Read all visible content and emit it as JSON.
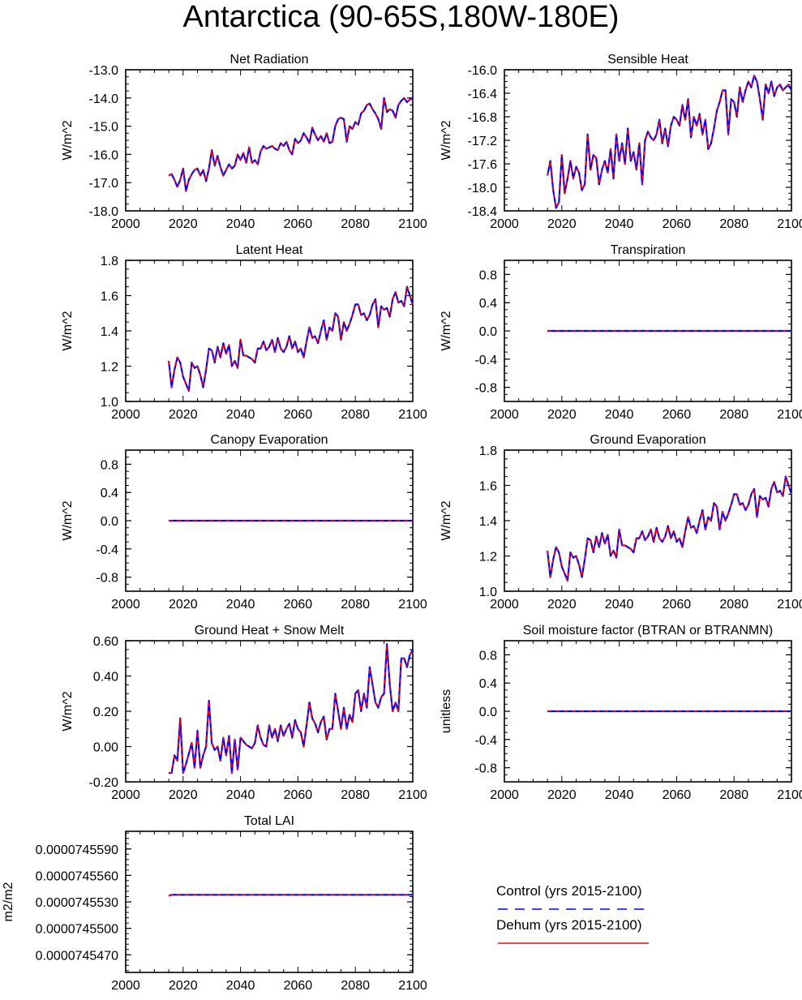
{
  "page": {
    "title": "Antarctica (90-65S,180W-180E)"
  },
  "legend": {
    "items": [
      {
        "label": "Control (yrs 2015-2100)",
        "color": "#0000ff",
        "style": "dashed"
      },
      {
        "label": "Dehum (yrs 2015-2100)",
        "color": "#ff0000",
        "style": "solid"
      }
    ]
  },
  "chart_data": [
    {
      "type": "line",
      "title": "Net Radiation",
      "ylabel": "W/m^2",
      "xlabel": "",
      "xlim": [
        2000,
        2100
      ],
      "ylim": [
        -18.0,
        -13.0
      ],
      "xticks": [
        2000,
        2020,
        2040,
        2060,
        2080,
        2100
      ],
      "yticks": [
        -18.0,
        -17.0,
        -16.0,
        -15.0,
        -14.0,
        -13.0
      ],
      "ytick_labels": [
        "-18.0",
        "-17.0",
        "-16.0",
        "-15.0",
        "-14.0",
        "-13.0"
      ],
      "yminor": 0.25,
      "x_start": 2015,
      "values": [
        -16.75,
        -16.7,
        -16.9,
        -17.15,
        -16.9,
        -16.5,
        -17.3,
        -16.9,
        -16.7,
        -16.55,
        -16.5,
        -16.75,
        -16.55,
        -16.95,
        -16.5,
        -15.85,
        -16.4,
        -16.05,
        -16.45,
        -16.75,
        -16.55,
        -16.35,
        -16.5,
        -16.4,
        -16.0,
        -16.2,
        -15.95,
        -16.3,
        -15.75,
        -16.3,
        -16.2,
        -16.35,
        -15.9,
        -15.7,
        -15.8,
        -15.75,
        -15.7,
        -15.8,
        -15.85,
        -15.6,
        -15.7,
        -15.55,
        -15.85,
        -16.0,
        -15.45,
        -15.6,
        -15.5,
        -15.25,
        -15.4,
        -15.6,
        -15.05,
        -15.3,
        -15.5,
        -15.35,
        -15.55,
        -15.25,
        -15.6,
        -15.55,
        -15.0,
        -14.75,
        -14.7,
        -14.75,
        -15.55,
        -15.0,
        -15.1,
        -14.85,
        -14.95,
        -14.55,
        -14.45,
        -14.25,
        -14.2,
        -14.4,
        -14.55,
        -14.75,
        -15.1,
        -14.0,
        -14.5,
        -14.4,
        -14.45,
        -14.7,
        -14.25,
        -14.1,
        -14.0,
        -14.15,
        -14.05,
        -14.0
      ]
    },
    {
      "type": "line",
      "title": "Sensible Heat",
      "ylabel": "W/m^2",
      "xlabel": "",
      "xlim": [
        2000,
        2100
      ],
      "ylim": [
        -18.4,
        -16.0
      ],
      "xticks": [
        2000,
        2020,
        2040,
        2060,
        2080,
        2100
      ],
      "yticks": [
        -18.4,
        -18.0,
        -17.6,
        -17.2,
        -16.8,
        -16.4,
        -16.0
      ],
      "ytick_labels": [
        "-18.4",
        "-18.0",
        "-17.6",
        "-17.2",
        "-16.8",
        "-16.4",
        "-16.0"
      ],
      "yminor": 0.1,
      "x_start": 2015,
      "values": [
        -17.8,
        -17.55,
        -18.05,
        -18.35,
        -18.25,
        -17.45,
        -18.1,
        -17.85,
        -17.55,
        -17.85,
        -17.65,
        -17.75,
        -18.05,
        -17.95,
        -17.1,
        -17.7,
        -17.45,
        -17.5,
        -17.95,
        -17.7,
        -17.55,
        -17.75,
        -17.35,
        -17.85,
        -17.1,
        -17.55,
        -17.25,
        -17.6,
        -17.0,
        -17.55,
        -17.4,
        -17.7,
        -17.25,
        -17.95,
        -17.2,
        -17.05,
        -17.15,
        -17.2,
        -17.1,
        -16.85,
        -17.25,
        -17.0,
        -17.3,
        -16.95,
        -16.8,
        -16.85,
        -16.95,
        -16.6,
        -16.85,
        -16.5,
        -17.15,
        -16.8,
        -16.95,
        -16.75,
        -17.1,
        -16.85,
        -17.35,
        -17.25,
        -17.0,
        -16.7,
        -16.55,
        -16.35,
        -16.35,
        -17.1,
        -16.5,
        -16.55,
        -16.8,
        -16.3,
        -16.55,
        -16.35,
        -16.2,
        -16.3,
        -16.1,
        -16.2,
        -16.5,
        -16.85,
        -16.25,
        -16.4,
        -16.2,
        -16.45,
        -16.3,
        -16.25,
        -16.35,
        -16.3,
        -16.25,
        -16.35
      ]
    },
    {
      "type": "line",
      "title": "Latent Heat",
      "ylabel": "W/m^2",
      "xlabel": "",
      "xlim": [
        2000,
        2100
      ],
      "ylim": [
        1.0,
        1.8
      ],
      "xticks": [
        2000,
        2020,
        2040,
        2060,
        2080,
        2100
      ],
      "yticks": [
        1.0,
        1.2,
        1.4,
        1.6,
        1.8
      ],
      "ytick_labels": [
        "1.0",
        "1.2",
        "1.4",
        "1.6",
        "1.8"
      ],
      "yminor": 0.05,
      "x_start": 2015,
      "values": [
        1.23,
        1.08,
        1.18,
        1.25,
        1.22,
        1.14,
        1.1,
        1.06,
        1.22,
        1.19,
        1.2,
        1.15,
        1.08,
        1.18,
        1.3,
        1.29,
        1.22,
        1.31,
        1.25,
        1.33,
        1.27,
        1.32,
        1.2,
        1.23,
        1.19,
        1.35,
        1.26,
        1.26,
        1.25,
        1.24,
        1.22,
        1.3,
        1.3,
        1.34,
        1.29,
        1.31,
        1.35,
        1.28,
        1.36,
        1.3,
        1.28,
        1.31,
        1.37,
        1.3,
        1.34,
        1.28,
        1.3,
        1.25,
        1.34,
        1.42,
        1.36,
        1.37,
        1.33,
        1.4,
        1.46,
        1.35,
        1.42,
        1.4,
        1.5,
        1.48,
        1.35,
        1.45,
        1.4,
        1.44,
        1.49,
        1.55,
        1.55,
        1.49,
        1.5,
        1.46,
        1.49,
        1.55,
        1.58,
        1.42,
        1.54,
        1.52,
        1.53,
        1.48,
        1.58,
        1.62,
        1.56,
        1.57,
        1.54,
        1.65,
        1.6,
        1.55
      ]
    },
    {
      "type": "line",
      "title": "Transpiration",
      "ylabel": "W/m^2",
      "xlabel": "",
      "xlim": [
        2000,
        2100
      ],
      "ylim": [
        -1.0,
        1.0
      ],
      "xticks": [
        2000,
        2020,
        2040,
        2060,
        2080,
        2100
      ],
      "yticks": [
        -0.8,
        -0.4,
        0.0,
        0.4,
        0.8
      ],
      "ytick_labels": [
        "-0.8",
        "-0.4",
        "0.0",
        "0.4",
        "0.8"
      ],
      "yminor": 0.1,
      "x_start": 2015,
      "constant": 0.0,
      "x_end": 2100
    },
    {
      "type": "line",
      "title": "Canopy Evaporation",
      "ylabel": "W/m^2",
      "xlabel": "",
      "xlim": [
        2000,
        2100
      ],
      "ylim": [
        -1.0,
        1.0
      ],
      "xticks": [
        2000,
        2020,
        2040,
        2060,
        2080,
        2100
      ],
      "yticks": [
        -0.8,
        -0.4,
        0.0,
        0.4,
        0.8
      ],
      "ytick_labels": [
        "-0.8",
        "-0.4",
        "0.0",
        "0.4",
        "0.8"
      ],
      "yminor": 0.1,
      "x_start": 2015,
      "constant": 0.0,
      "x_end": 2100
    },
    {
      "type": "line",
      "title": "Ground Evaporation",
      "ylabel": "W/m^2",
      "xlabel": "",
      "xlim": [
        2000,
        2100
      ],
      "ylim": [
        1.0,
        1.8
      ],
      "xticks": [
        2000,
        2020,
        2040,
        2060,
        2080,
        2100
      ],
      "yticks": [
        1.0,
        1.2,
        1.4,
        1.6,
        1.8
      ],
      "ytick_labels": [
        "1.0",
        "1.2",
        "1.4",
        "1.6",
        "1.8"
      ],
      "yminor": 0.05,
      "x_start": 2015,
      "values": [
        1.23,
        1.08,
        1.18,
        1.25,
        1.22,
        1.14,
        1.1,
        1.06,
        1.22,
        1.19,
        1.2,
        1.15,
        1.08,
        1.18,
        1.3,
        1.29,
        1.22,
        1.31,
        1.25,
        1.33,
        1.27,
        1.32,
        1.2,
        1.23,
        1.19,
        1.35,
        1.26,
        1.26,
        1.25,
        1.24,
        1.22,
        1.3,
        1.3,
        1.34,
        1.29,
        1.31,
        1.35,
        1.28,
        1.36,
        1.3,
        1.28,
        1.31,
        1.37,
        1.3,
        1.34,
        1.28,
        1.3,
        1.25,
        1.34,
        1.42,
        1.36,
        1.37,
        1.33,
        1.4,
        1.46,
        1.35,
        1.42,
        1.4,
        1.5,
        1.48,
        1.35,
        1.45,
        1.4,
        1.44,
        1.49,
        1.55,
        1.55,
        1.49,
        1.5,
        1.46,
        1.49,
        1.55,
        1.58,
        1.42,
        1.54,
        1.52,
        1.53,
        1.48,
        1.58,
        1.62,
        1.56,
        1.57,
        1.54,
        1.65,
        1.6,
        1.55
      ]
    },
    {
      "type": "line",
      "title": "Ground Heat + Snow Melt",
      "ylabel": "W/m^2",
      "xlabel": "",
      "xlim": [
        2000,
        2100
      ],
      "ylim": [
        -0.2,
        0.6
      ],
      "xticks": [
        2000,
        2020,
        2040,
        2060,
        2080,
        2100
      ],
      "yticks": [
        -0.2,
        0.0,
        0.2,
        0.4,
        0.6
      ],
      "ytick_labels": [
        "-0.20",
        "0.00",
        "0.20",
        "0.40",
        "0.60"
      ],
      "yminor": 0.05,
      "x_start": 2015,
      "values": [
        -0.15,
        -0.15,
        -0.05,
        -0.08,
        0.16,
        -0.15,
        -0.1,
        -0.04,
        0.02,
        -0.12,
        0.09,
        -0.12,
        -0.05,
        0.0,
        0.26,
        0.02,
        -0.02,
        0.0,
        -0.08,
        0.05,
        -0.05,
        0.06,
        -0.15,
        0.04,
        -0.13,
        0.05,
        0.03,
        0.01,
        0.0,
        -0.01,
        0.02,
        0.12,
        0.05,
        0.01,
        0.0,
        0.12,
        0.05,
        0.1,
        0.03,
        0.12,
        0.06,
        0.1,
        0.13,
        0.05,
        0.15,
        0.1,
        0.08,
        0.0,
        0.12,
        0.25,
        0.16,
        0.13,
        0.08,
        0.14,
        0.17,
        0.04,
        0.1,
        0.1,
        0.3,
        0.2,
        0.1,
        0.22,
        0.1,
        0.18,
        0.14,
        0.3,
        0.32,
        0.2,
        0.3,
        0.22,
        0.45,
        0.35,
        0.25,
        0.22,
        0.28,
        0.3,
        0.58,
        0.35,
        0.2,
        0.25,
        0.2,
        0.5,
        0.5,
        0.45,
        0.52,
        0.55
      ]
    },
    {
      "type": "line",
      "title": "Soil moisture factor (BTRAN or BTRANMN)",
      "ylabel": "unitless",
      "xlabel": "",
      "xlim": [
        2000,
        2100
      ],
      "ylim": [
        -1.0,
        1.0
      ],
      "xticks": [
        2000,
        2020,
        2040,
        2060,
        2080,
        2100
      ],
      "yticks": [
        -0.8,
        -0.4,
        0.0,
        0.4,
        0.8
      ],
      "ytick_labels": [
        "-0.8",
        "-0.4",
        "0.0",
        "0.4",
        "0.8"
      ],
      "yminor": 0.1,
      "x_start": 2015,
      "constant": 0.0,
      "x_end": 2100
    },
    {
      "type": "line",
      "title": "Total LAI",
      "ylabel": "m2/m2",
      "xlabel": "",
      "xlim": [
        2000,
        2100
      ],
      "ylim": [
        7.4545e-05,
        7.4561e-05
      ],
      "xticks": [
        2000,
        2020,
        2040,
        2060,
        2080,
        2100
      ],
      "yticks": [
        7.4547e-05,
        7.455e-05,
        7.4553e-05,
        7.4556e-05,
        7.4559e-05
      ],
      "ytick_labels": [
        "0.0000745470",
        "0.0000745500",
        "0.0000745530",
        "0.0000745560",
        "0.0000745590"
      ],
      "yminor": 6e-10,
      "x_start": 2015,
      "values": [
        7.45537e-05,
        7.45538e-05
      ],
      "constant": 7.45538e-05,
      "x_end": 2100
    }
  ]
}
